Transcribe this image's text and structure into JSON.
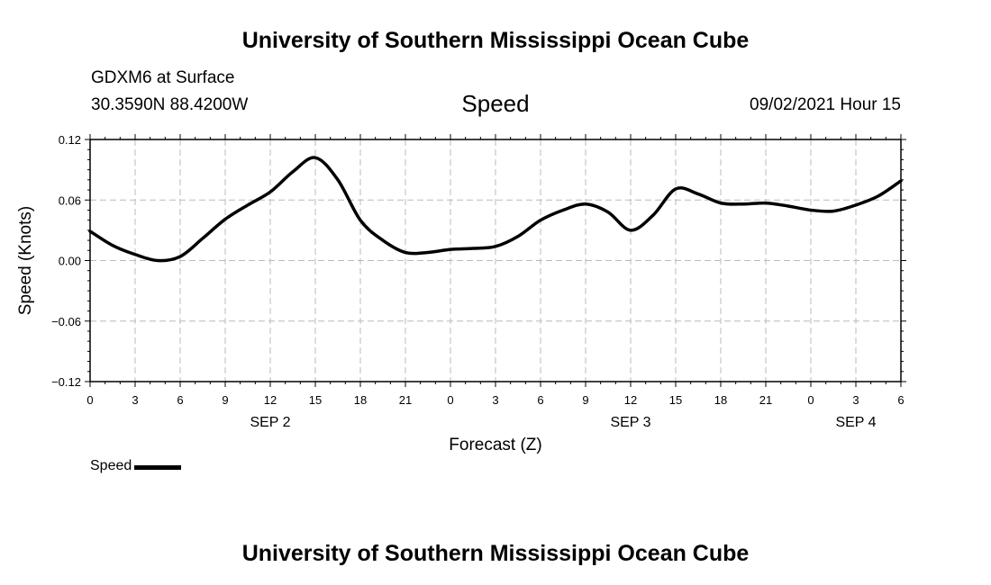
{
  "header": {
    "title": "University of Southern Mississippi Ocean Cube",
    "station": "GDXM6 at Surface",
    "coords": "30.3590N  88.4200W",
    "variable": "Speed",
    "datetime": "09/02/2021 Hour 15"
  },
  "footer": {
    "title": "University of Southern Mississippi Ocean Cube"
  },
  "legend": {
    "label": "Speed"
  },
  "colors": {
    "line": "#000000",
    "grid": "#bbbbbb",
    "axis": "#000000",
    "background": "#ffffff"
  },
  "chart_data": {
    "type": "line",
    "title": "Speed",
    "xlabel": "Forecast (Z)",
    "ylabel": "Speed (Knots)",
    "xlim": [
      0,
      54
    ],
    "ylim": [
      -0.12,
      0.12
    ],
    "yticks": [
      "0.12",
      "0.06",
      "0.00",
      "-0.06",
      "-0.12"
    ],
    "ytick_values": [
      0.12,
      0.06,
      0.0,
      -0.06,
      -0.12
    ],
    "xtick_labels": [
      "0",
      "3",
      "6",
      "9",
      "12",
      "15",
      "18",
      "21",
      "0",
      "3",
      "6",
      "9",
      "12",
      "15",
      "18",
      "21",
      "0",
      "3",
      "6"
    ],
    "day_labels": [
      {
        "label": "SEP 2",
        "hour": 12
      },
      {
        "label": "SEP 3",
        "hour": 36
      },
      {
        "label": "SEP 4",
        "hour": 51
      }
    ],
    "grid": true,
    "legend_position": "bottom-left",
    "series": [
      {
        "name": "Speed",
        "x": [
          0,
          1.5,
          3,
          4.5,
          6,
          7.5,
          9,
          10.5,
          12,
          13.5,
          15,
          16.5,
          18,
          19.5,
          21,
          22.5,
          24,
          25.5,
          27,
          28.5,
          30,
          31.5,
          33,
          34.5,
          36,
          37.5,
          39,
          40.5,
          42,
          43.5,
          45,
          46.5,
          48,
          49.5,
          51,
          52.5,
          54
        ],
        "values": [
          0.029,
          0.015,
          0.006,
          0.0,
          0.004,
          0.022,
          0.041,
          0.055,
          0.068,
          0.088,
          0.102,
          0.08,
          0.04,
          0.02,
          0.008,
          0.008,
          0.011,
          0.012,
          0.014,
          0.024,
          0.04,
          0.05,
          0.056,
          0.048,
          0.03,
          0.045,
          0.071,
          0.066,
          0.057,
          0.056,
          0.057,
          0.054,
          0.05,
          0.049,
          0.055,
          0.064,
          0.079
        ]
      }
    ]
  }
}
